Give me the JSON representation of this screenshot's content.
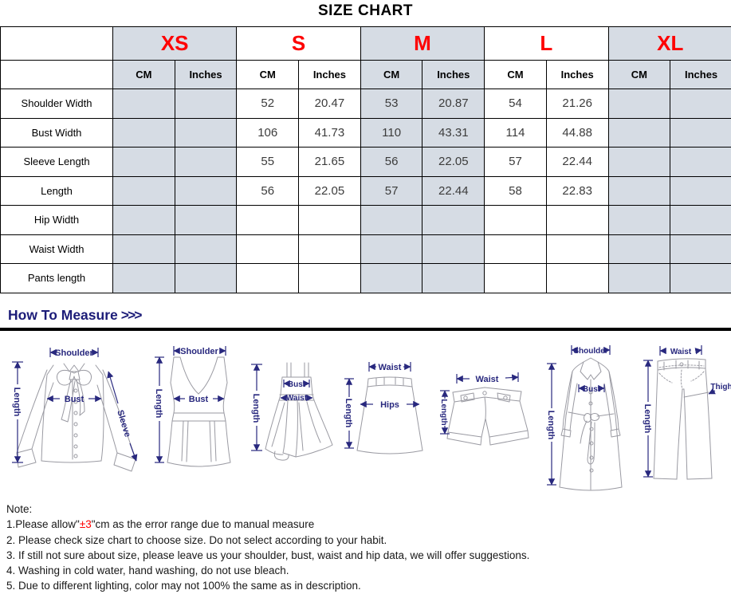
{
  "title": "SIZE CHART",
  "table": {
    "sizes": [
      {
        "label": "XS",
        "shaded": true
      },
      {
        "label": "S",
        "shaded": false
      },
      {
        "label": "M",
        "shaded": true
      },
      {
        "label": "L",
        "shaded": false
      },
      {
        "label": "XL",
        "shaded": true
      }
    ],
    "unit_headers": [
      "CM",
      "Inches"
    ],
    "rows": [
      {
        "label": "Shoulder Width",
        "values": [
          "",
          "",
          "52",
          "20.47",
          "53",
          "20.87",
          "54",
          "21.26",
          "",
          ""
        ]
      },
      {
        "label": "Bust Width",
        "values": [
          "",
          "",
          "106",
          "41.73",
          "110",
          "43.31",
          "114",
          "44.88",
          "",
          ""
        ]
      },
      {
        "label": "Sleeve Length",
        "values": [
          "",
          "",
          "55",
          "21.65",
          "56",
          "22.05",
          "57",
          "22.44",
          "",
          ""
        ]
      },
      {
        "label": "Length",
        "values": [
          "",
          "",
          "56",
          "22.05",
          "57",
          "22.44",
          "58",
          "22.83",
          "",
          ""
        ]
      },
      {
        "label": "Hip Width",
        "values": [
          "",
          "",
          "",
          "",
          "",
          "",
          "",
          "",
          "",
          ""
        ]
      },
      {
        "label": "Waist Width",
        "values": [
          "",
          "",
          "",
          "",
          "",
          "",
          "",
          "",
          "",
          ""
        ]
      },
      {
        "label": "Pants length",
        "values": [
          "",
          "",
          "",
          "",
          "",
          "",
          "",
          "",
          "",
          ""
        ]
      }
    ]
  },
  "measure": {
    "heading": "How To Measure",
    "heading_arrows": ">>>",
    "diagrams": [
      {
        "name": "blouse",
        "labels": [
          "Shoulder",
          "Length",
          "Bust",
          "Sleeve"
        ]
      },
      {
        "name": "tank-top",
        "labels": [
          "Shoulder",
          "Length",
          "Bust"
        ]
      },
      {
        "name": "dress",
        "labels": [
          "Length",
          "Bust",
          "Waist"
        ]
      },
      {
        "name": "skirt",
        "labels": [
          "Waist",
          "Hips",
          "Length"
        ]
      },
      {
        "name": "shorts",
        "labels": [
          "Waist",
          "Length"
        ]
      },
      {
        "name": "coat",
        "labels": [
          "Shoulder",
          "Bust",
          "Length"
        ]
      },
      {
        "name": "pants",
        "labels": [
          "Waist",
          "Thigh",
          "Length"
        ]
      }
    ]
  },
  "notes": {
    "heading": "Note:",
    "lines": [
      {
        "segments": [
          {
            "t": "1.Please allow\""
          },
          {
            "t": "±3",
            "red": true
          },
          {
            "t": "\"cm as the error range due to manual measure"
          }
        ]
      },
      {
        "segments": [
          {
            "t": "2. Please check size chart to choose size. Do not select according to your habit."
          }
        ]
      },
      {
        "segments": [
          {
            "t": "3. If still not sure about size, please leave us your shoulder, bust, waist and hip data, we will offer suggestions."
          }
        ]
      },
      {
        "segments": [
          {
            "t": "4. Washing in cold water, hand washing, do not use bleach."
          }
        ]
      },
      {
        "segments": [
          {
            "t": "5. Due to different lighting, color may not 100% the same as in description."
          }
        ]
      }
    ]
  },
  "colors": {
    "shaded_cell": "#d6dce4",
    "size_label": "#fe0000",
    "measure_label": "#28287e",
    "note_highlight": "#fe0000"
  }
}
